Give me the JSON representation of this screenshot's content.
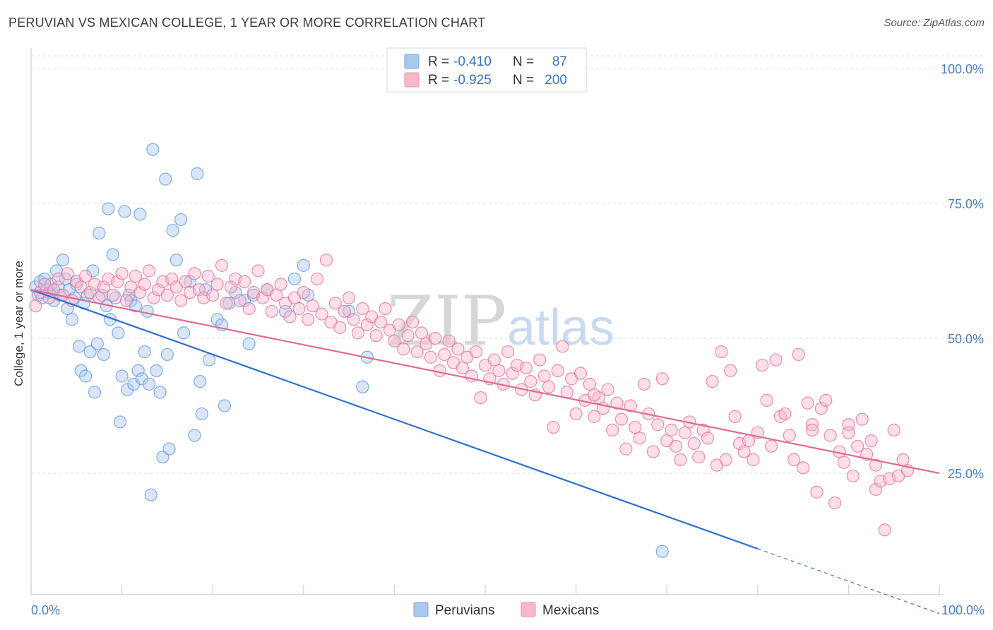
{
  "header": {
    "title": "PERUVIAN VS MEXICAN COLLEGE, 1 YEAR OR MORE CORRELATION CHART",
    "source": "Source: ZipAtlas.com"
  },
  "legend": {
    "rows": [
      {
        "r_label": "R =",
        "r_value": "-0.410",
        "n_label": "N =",
        "n_value": "87",
        "color": "#a8c8f0"
      },
      {
        "r_label": "R =",
        "r_value": "-0.925",
        "n_label": "N =",
        "n_value": "200",
        "color": "#f8b8cc"
      }
    ]
  },
  "bottom_legend": [
    {
      "label": "Peruvians",
      "color": "#a8c8f0"
    },
    {
      "label": "Mexicans",
      "color": "#f8b8cc"
    }
  ],
  "watermark": {
    "zip": "ZIP",
    "atlas": "atlas"
  },
  "chart_data": {
    "type": "scatter",
    "title": "PERUVIAN VS MEXICAN COLLEGE, 1 YEAR OR MORE CORRELATION CHART",
    "xlabel": "",
    "ylabel": "College, 1 year or more",
    "xlim": [
      0,
      100
    ],
    "ylim": [
      0,
      105
    ],
    "x_tick_labels": [
      "0.0%",
      "100.0%"
    ],
    "y_tick_labels": [
      "100.0%",
      "75.0%",
      "50.0%",
      "25.0%"
    ],
    "y_ticks": [
      100,
      75,
      50,
      25
    ],
    "grid": true,
    "legend_position": "top-center",
    "series": [
      {
        "name": "Peruvians",
        "color": "#6f9fdc",
        "fill": "#a8c8f0",
        "trend": {
          "x0": 0,
          "y0": 59.0,
          "x1": 80,
          "y1": 11.0,
          "dashed_to_x": 100
        },
        "points": [
          [
            0.5,
            59.5
          ],
          [
            0.8,
            58.0
          ],
          [
            1.0,
            60.5
          ],
          [
            1.2,
            57.5
          ],
          [
            1.5,
            61.0
          ],
          [
            1.7,
            59.0
          ],
          [
            2.0,
            58.5
          ],
          [
            2.2,
            60.0
          ],
          [
            2.5,
            57.0
          ],
          [
            2.8,
            62.5
          ],
          [
            3.0,
            59.5
          ],
          [
            3.2,
            58.0
          ],
          [
            3.5,
            64.5
          ],
          [
            3.8,
            61.0
          ],
          [
            4.0,
            55.5
          ],
          [
            4.2,
            59.0
          ],
          [
            4.5,
            53.5
          ],
          [
            4.8,
            57.5
          ],
          [
            5.0,
            60.0
          ],
          [
            5.3,
            48.5
          ],
          [
            5.5,
            44.0
          ],
          [
            5.8,
            56.5
          ],
          [
            6.0,
            43.0
          ],
          [
            6.2,
            58.0
          ],
          [
            6.5,
            47.5
          ],
          [
            6.8,
            62.5
          ],
          [
            7.0,
            40.0
          ],
          [
            7.3,
            49.0
          ],
          [
            7.5,
            69.5
          ],
          [
            7.8,
            58.0
          ],
          [
            8.0,
            47.0
          ],
          [
            8.3,
            56.0
          ],
          [
            8.5,
            74.0
          ],
          [
            8.7,
            53.5
          ],
          [
            9.0,
            65.5
          ],
          [
            9.3,
            57.5
          ],
          [
            9.6,
            51.0
          ],
          [
            9.8,
            34.5
          ],
          [
            10.0,
            43.0
          ],
          [
            10.3,
            73.5
          ],
          [
            10.6,
            40.5
          ],
          [
            10.8,
            58.0
          ],
          [
            11.0,
            57.0
          ],
          [
            11.3,
            41.5
          ],
          [
            11.5,
            56.0
          ],
          [
            11.8,
            44.0
          ],
          [
            12.0,
            73.0
          ],
          [
            12.2,
            42.5
          ],
          [
            12.5,
            47.5
          ],
          [
            12.8,
            55.0
          ],
          [
            13.0,
            41.5
          ],
          [
            13.2,
            21.0
          ],
          [
            13.4,
            85.0
          ],
          [
            13.8,
            44.0
          ],
          [
            14.2,
            40.0
          ],
          [
            14.5,
            28.0
          ],
          [
            14.8,
            79.5
          ],
          [
            15.0,
            47.0
          ],
          [
            15.2,
            29.5
          ],
          [
            15.6,
            70.0
          ],
          [
            16.0,
            64.5
          ],
          [
            16.5,
            72.0
          ],
          [
            16.8,
            51.0
          ],
          [
            17.5,
            60.5
          ],
          [
            18.0,
            32.0
          ],
          [
            18.3,
            80.5
          ],
          [
            18.6,
            42.0
          ],
          [
            18.8,
            36.0
          ],
          [
            19.2,
            59.0
          ],
          [
            19.6,
            46.0
          ],
          [
            20.5,
            53.5
          ],
          [
            21.0,
            52.5
          ],
          [
            21.3,
            37.5
          ],
          [
            21.8,
            56.5
          ],
          [
            22.5,
            58.5
          ],
          [
            23.5,
            57.0
          ],
          [
            24.0,
            49.0
          ],
          [
            24.5,
            58.0
          ],
          [
            30.0,
            63.5
          ],
          [
            30.5,
            58.0
          ],
          [
            28.0,
            55.0
          ],
          [
            26.0,
            59.0
          ],
          [
            29.0,
            61.0
          ],
          [
            35.0,
            55.0
          ],
          [
            36.5,
            41.0
          ],
          [
            37.0,
            46.5
          ],
          [
            69.5,
            10.5
          ]
        ]
      },
      {
        "name": "Mexicans",
        "color": "#e87aa0",
        "fill": "#f8b8cc",
        "trend": {
          "x0": 0,
          "y0": 59.0,
          "x1": 100,
          "y1": 25.0
        },
        "points": [
          [
            0.5,
            56.0
          ],
          [
            1.0,
            58.5
          ],
          [
            1.5,
            60.0
          ],
          [
            2.0,
            57.5
          ],
          [
            2.5,
            59.0
          ],
          [
            3.0,
            61.0
          ],
          [
            3.5,
            58.0
          ],
          [
            4.0,
            62.0
          ],
          [
            4.5,
            57.0
          ],
          [
            5.0,
            60.5
          ],
          [
            5.5,
            59.5
          ],
          [
            6.0,
            61.5
          ],
          [
            6.5,
            58.5
          ],
          [
            7.0,
            60.0
          ],
          [
            7.5,
            57.5
          ],
          [
            8.0,
            59.5
          ],
          [
            8.5,
            61.0
          ],
          [
            9.0,
            58.0
          ],
          [
            9.5,
            60.5
          ],
          [
            10.0,
            62.0
          ],
          [
            10.5,
            57.0
          ],
          [
            11.0,
            59.5
          ],
          [
            11.5,
            61.5
          ],
          [
            12.0,
            58.5
          ],
          [
            12.5,
            60.0
          ],
          [
            13.0,
            62.5
          ],
          [
            13.5,
            57.5
          ],
          [
            14.0,
            59.0
          ],
          [
            14.5,
            60.5
          ],
          [
            15.0,
            58.0
          ],
          [
            15.5,
            61.0
          ],
          [
            16.0,
            59.5
          ],
          [
            16.5,
            57.0
          ],
          [
            17.0,
            60.5
          ],
          [
            17.5,
            58.5
          ],
          [
            18.0,
            62.0
          ],
          [
            18.5,
            59.0
          ],
          [
            19.0,
            57.5
          ],
          [
            19.5,
            61.5
          ],
          [
            20.0,
            58.0
          ],
          [
            20.5,
            60.0
          ],
          [
            21.0,
            63.5
          ],
          [
            21.5,
            56.5
          ],
          [
            22.0,
            59.5
          ],
          [
            22.5,
            61.0
          ],
          [
            23.0,
            57.0
          ],
          [
            23.5,
            60.5
          ],
          [
            24.0,
            55.5
          ],
          [
            24.5,
            58.5
          ],
          [
            25.0,
            62.5
          ],
          [
            25.5,
            57.5
          ],
          [
            26.0,
            59.0
          ],
          [
            26.5,
            55.0
          ],
          [
            27.0,
            58.0
          ],
          [
            27.5,
            60.0
          ],
          [
            28.0,
            56.5
          ],
          [
            28.5,
            54.0
          ],
          [
            29.0,
            57.5
          ],
          [
            29.5,
            55.5
          ],
          [
            30.0,
            58.5
          ],
          [
            30.5,
            53.5
          ],
          [
            31.0,
            56.0
          ],
          [
            31.5,
            61.0
          ],
          [
            32.0,
            54.5
          ],
          [
            32.5,
            64.5
          ],
          [
            33.0,
            53.0
          ],
          [
            33.5,
            56.5
          ],
          [
            34.0,
            52.0
          ],
          [
            34.5,
            55.0
          ],
          [
            35.0,
            57.5
          ],
          [
            35.5,
            53.5
          ],
          [
            36.0,
            51.0
          ],
          [
            36.5,
            55.5
          ],
          [
            37.0,
            52.5
          ],
          [
            37.5,
            54.0
          ],
          [
            38.0,
            50.5
          ],
          [
            38.5,
            53.0
          ],
          [
            39.0,
            55.5
          ],
          [
            39.5,
            51.5
          ],
          [
            40.0,
            49.5
          ],
          [
            40.5,
            52.5
          ],
          [
            41.0,
            48.0
          ],
          [
            41.5,
            50.5
          ],
          [
            42.0,
            53.0
          ],
          [
            42.5,
            47.5
          ],
          [
            43.0,
            51.0
          ],
          [
            43.5,
            49.0
          ],
          [
            44.0,
            46.5
          ],
          [
            44.5,
            50.0
          ],
          [
            45.0,
            44.0
          ],
          [
            45.5,
            47.0
          ],
          [
            46.0,
            49.5
          ],
          [
            46.5,
            45.5
          ],
          [
            47.0,
            48.0
          ],
          [
            47.5,
            44.5
          ],
          [
            48.0,
            46.5
          ],
          [
            48.5,
            43.0
          ],
          [
            49.0,
            47.5
          ],
          [
            49.5,
            39.0
          ],
          [
            50.0,
            45.0
          ],
          [
            50.5,
            42.5
          ],
          [
            51.0,
            46.0
          ],
          [
            51.5,
            44.0
          ],
          [
            52.0,
            41.5
          ],
          [
            52.5,
            47.5
          ],
          [
            53.0,
            43.5
          ],
          [
            53.5,
            45.0
          ],
          [
            54.0,
            40.5
          ],
          [
            54.5,
            44.5
          ],
          [
            55.0,
            42.0
          ],
          [
            55.5,
            39.5
          ],
          [
            56.0,
            46.0
          ],
          [
            56.5,
            43.0
          ],
          [
            57.0,
            41.0
          ],
          [
            57.5,
            33.5
          ],
          [
            58.0,
            44.0
          ],
          [
            58.5,
            48.5
          ],
          [
            59.0,
            40.0
          ],
          [
            59.5,
            42.5
          ],
          [
            60.0,
            36.0
          ],
          [
            60.5,
            43.5
          ],
          [
            61.0,
            38.5
          ],
          [
            61.5,
            41.5
          ],
          [
            62.0,
            35.5
          ],
          [
            62.5,
            39.0
          ],
          [
            63.0,
            37.0
          ],
          [
            63.5,
            40.5
          ],
          [
            64.0,
            33.0
          ],
          [
            64.5,
            38.0
          ],
          [
            65.0,
            35.0
          ],
          [
            65.5,
            29.5
          ],
          [
            66.0,
            37.5
          ],
          [
            66.5,
            33.5
          ],
          [
            67.0,
            31.5
          ],
          [
            67.5,
            41.5
          ],
          [
            68.0,
            36.0
          ],
          [
            68.5,
            29.0
          ],
          [
            69.0,
            34.0
          ],
          [
            69.5,
            42.5
          ],
          [
            70.0,
            31.0
          ],
          [
            70.5,
            33.0
          ],
          [
            71.0,
            30.0
          ],
          [
            71.5,
            27.5
          ],
          [
            72.0,
            32.5
          ],
          [
            72.5,
            34.5
          ],
          [
            73.0,
            30.5
          ],
          [
            73.5,
            28.0
          ],
          [
            74.0,
            33.0
          ],
          [
            74.5,
            31.5
          ],
          [
            75.0,
            42.0
          ],
          [
            75.5,
            26.5
          ],
          [
            76.0,
            47.5
          ],
          [
            76.5,
            27.5
          ],
          [
            77.0,
            44.0
          ],
          [
            77.5,
            35.5
          ],
          [
            78.0,
            30.5
          ],
          [
            78.5,
            29.0
          ],
          [
            79.0,
            31.0
          ],
          [
            79.5,
            27.5
          ],
          [
            80.0,
            32.5
          ],
          [
            80.5,
            45.0
          ],
          [
            81.0,
            38.5
          ],
          [
            81.5,
            30.0
          ],
          [
            82.0,
            46.0
          ],
          [
            82.5,
            35.5
          ],
          [
            83.0,
            36.0
          ],
          [
            83.5,
            32.0
          ],
          [
            84.0,
            27.5
          ],
          [
            84.5,
            47.0
          ],
          [
            85.0,
            26.0
          ],
          [
            85.5,
            38.0
          ],
          [
            86.0,
            34.0
          ],
          [
            86.5,
            21.5
          ],
          [
            87.0,
            37.0
          ],
          [
            87.5,
            38.5
          ],
          [
            88.0,
            32.0
          ],
          [
            88.5,
            19.5
          ],
          [
            89.0,
            29.0
          ],
          [
            89.5,
            27.0
          ],
          [
            90.0,
            34.0
          ],
          [
            90.5,
            24.5
          ],
          [
            91.0,
            30.0
          ],
          [
            91.5,
            35.0
          ],
          [
            92.0,
            28.5
          ],
          [
            92.5,
            31.0
          ],
          [
            93.0,
            22.0
          ],
          [
            93.5,
            23.5
          ],
          [
            94.0,
            14.5
          ],
          [
            94.5,
            24.0
          ],
          [
            95.0,
            33.0
          ],
          [
            95.5,
            24.5
          ],
          [
            96.0,
            27.5
          ],
          [
            96.5,
            25.5
          ],
          [
            86.0,
            33.0
          ],
          [
            90.0,
            32.5
          ],
          [
            93.0,
            26.5
          ],
          [
            62.0,
            39.5
          ]
        ]
      }
    ]
  }
}
